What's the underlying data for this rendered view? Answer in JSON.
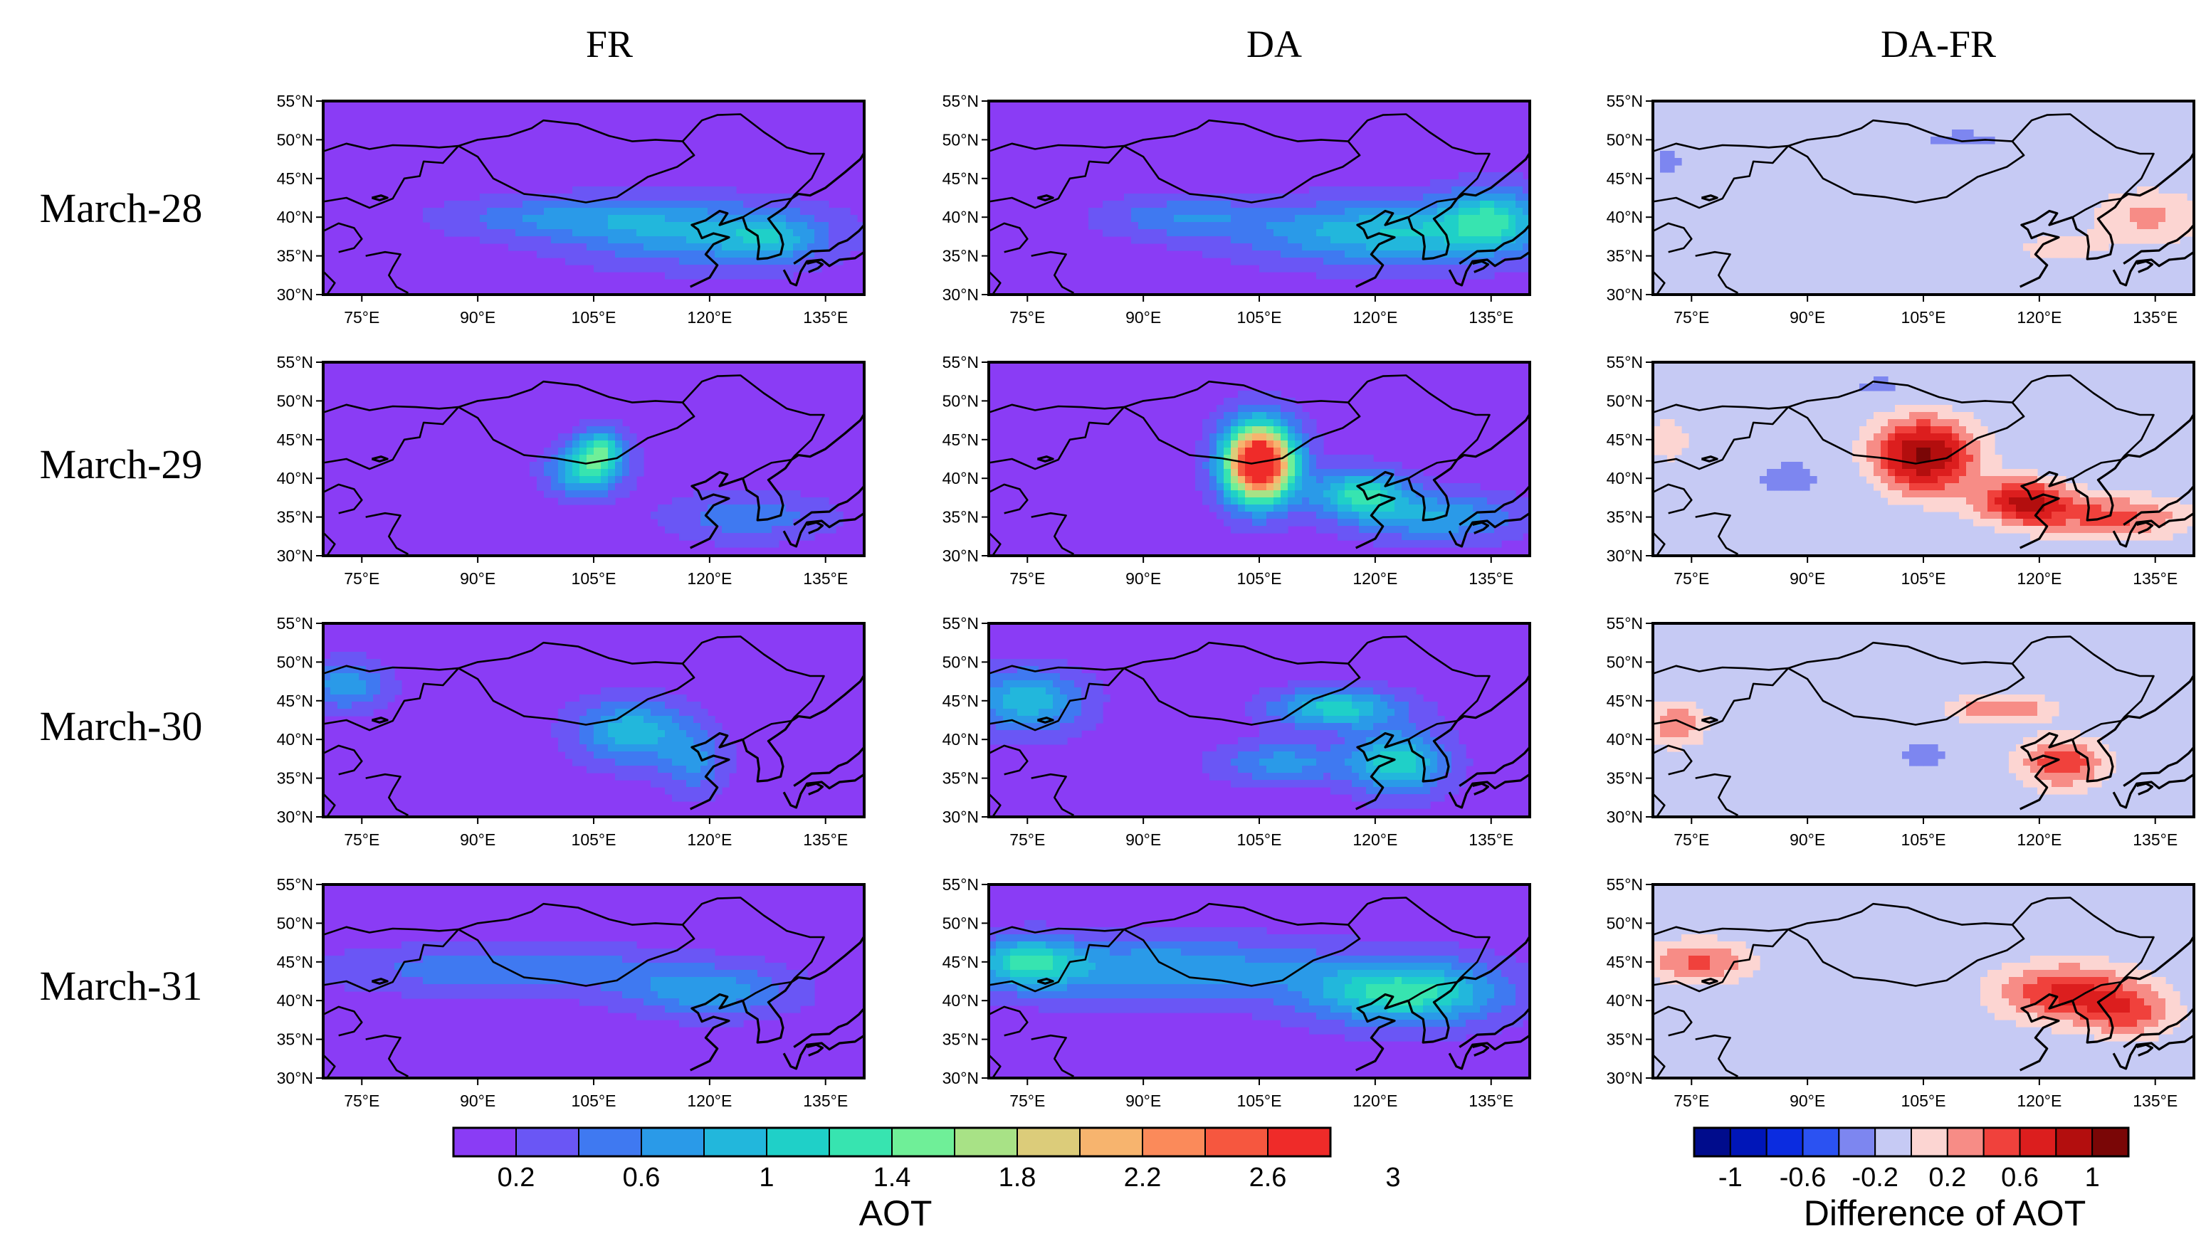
{
  "chart_data": {
    "type": "heatmap",
    "columns": [
      "FR",
      "DA",
      "DA-FR"
    ],
    "rows": [
      "March-28",
      "March-29",
      "March-30",
      "March-31"
    ],
    "lat_ticks": [
      "55°N",
      "50°N",
      "45°N",
      "40°N",
      "35°N",
      "30°N"
    ],
    "lon_ticks": [
      "75°E",
      "90°E",
      "105°E",
      "120°E",
      "135°E"
    ],
    "lat_range": [
      30,
      55
    ],
    "lon_range": [
      70,
      140
    ],
    "colorbars": [
      {
        "label": "AOT",
        "ticks": [
          "0.2",
          "0.6",
          "1",
          "1.4",
          "1.8",
          "2.2",
          "2.6",
          "3"
        ],
        "colors": [
          "#8a3cf5",
          "#6a56f5",
          "#3f79f1",
          "#2a9ae8",
          "#22b7dc",
          "#1fd0c8",
          "#37e4b0",
          "#6fef98",
          "#a8e286",
          "#dccc7a",
          "#f7b46e",
          "#fb8a5a",
          "#f6573f",
          "#ef2b29"
        ]
      },
      {
        "label": "Difference of AOT",
        "ticks": [
          "-1",
          "-0.6",
          "-0.2",
          "0.2",
          "0.6",
          "1"
        ],
        "colors": [
          "#000c8c",
          "#0016b8",
          "#0b2ce0",
          "#2b52f2",
          "#7d86f0",
          "#c6caf4",
          "#fcd5d2",
          "#f78c86",
          "#f0413c",
          "#dc1e1e",
          "#b30e0e",
          "#7a0606"
        ]
      }
    ],
    "panels": [
      {
        "row": "March-28",
        "column": "FR",
        "blobs": [
          {
            "lon": 118,
            "lat": 38,
            "aot": 0.8,
            "rlon": 16,
            "rlat": 4
          },
          {
            "lon": 100,
            "lat": 40,
            "aot": 0.55,
            "rlon": 14,
            "rlat": 2.5
          },
          {
            "lon": 128,
            "lat": 37,
            "aot": 0.6,
            "rlon": 6,
            "rlat": 3
          }
        ]
      },
      {
        "row": "March-28",
        "column": "DA",
        "blobs": [
          {
            "lon": 122,
            "lat": 38,
            "aot": 1.0,
            "rlon": 18,
            "rlat": 4
          },
          {
            "lon": 95,
            "lat": 40,
            "aot": 0.55,
            "rlon": 10,
            "rlat": 2.5
          },
          {
            "lon": 135,
            "lat": 40,
            "aot": 0.9,
            "rlon": 6,
            "rlat": 4
          }
        ]
      },
      {
        "row": "March-28",
        "column": "DA-FR",
        "blobs": [
          {
            "lon": 134,
            "lat": 40,
            "aot": 0.45,
            "rlon": 8,
            "rlat": 4
          },
          {
            "lon": 122,
            "lat": 36,
            "aot": 0.3,
            "rlon": 6,
            "rlat": 2
          },
          {
            "lon": 110,
            "lat": 50,
            "aot": -0.25,
            "rlon": 8,
            "rlat": 2
          },
          {
            "lon": 72,
            "lat": 47,
            "aot": -0.25,
            "rlon": 3,
            "rlat": 3
          }
        ]
      },
      {
        "row": "March-29",
        "column": "FR",
        "blobs": [
          {
            "lon": 104,
            "lat": 41,
            "aot": 1.2,
            "rlon": 4.5,
            "rlat": 3
          },
          {
            "lon": 106,
            "lat": 44,
            "aot": 1.05,
            "rlon": 3,
            "rlat": 2.5
          },
          {
            "lon": 125,
            "lat": 35,
            "aot": 0.55,
            "rlon": 10,
            "rlat": 3
          }
        ]
      },
      {
        "row": "March-29",
        "column": "DA",
        "blobs": [
          {
            "lon": 105,
            "lat": 42,
            "aot": 3.3,
            "rlon": 4.5,
            "rlat": 5
          },
          {
            "lon": 118,
            "lat": 38,
            "aot": 1.2,
            "rlon": 6,
            "rlat": 3
          },
          {
            "lon": 128,
            "lat": 35,
            "aot": 0.8,
            "rlon": 10,
            "rlat": 3
          }
        ]
      },
      {
        "row": "March-29",
        "column": "DA-FR",
        "blobs": [
          {
            "lon": 105,
            "lat": 43,
            "aot": 1.25,
            "rlon": 7,
            "rlat": 5
          },
          {
            "lon": 118,
            "lat": 37,
            "aot": 1.0,
            "rlon": 6,
            "rlat": 3
          },
          {
            "lon": 130,
            "lat": 35,
            "aot": 0.65,
            "rlon": 10,
            "rlat": 3
          },
          {
            "lon": 72,
            "lat": 45,
            "aot": 0.4,
            "rlon": 3,
            "rlat": 3
          },
          {
            "lon": 88,
            "lat": 40,
            "aot": -0.25,
            "rlon": 8,
            "rlat": 4
          },
          {
            "lon": 100,
            "lat": 52,
            "aot": -0.25,
            "rlon": 8,
            "rlat": 2
          }
        ]
      },
      {
        "row": "March-30",
        "column": "FR",
        "blobs": [
          {
            "lon": 110,
            "lat": 41,
            "aot": 0.95,
            "rlon": 7,
            "rlat": 4
          },
          {
            "lon": 73,
            "lat": 47,
            "aot": 0.75,
            "rlon": 5,
            "rlat": 3
          },
          {
            "lon": 118,
            "lat": 37,
            "aot": 0.6,
            "rlon": 4,
            "rlat": 4
          }
        ]
      },
      {
        "row": "March-30",
        "column": "DA",
        "blobs": [
          {
            "lon": 115,
            "lat": 44,
            "aot": 1.1,
            "rlon": 8,
            "rlat": 2.5
          },
          {
            "lon": 123,
            "lat": 37,
            "aot": 1.15,
            "rlon": 6,
            "rlat": 4
          },
          {
            "lon": 75,
            "lat": 45,
            "aot": 0.95,
            "rlon": 7,
            "rlat": 4
          },
          {
            "lon": 108,
            "lat": 37,
            "aot": 0.7,
            "rlon": 8,
            "rlat": 2.5
          }
        ]
      },
      {
        "row": "March-30",
        "column": "DA-FR",
        "blobs": [
          {
            "lon": 115,
            "lat": 44,
            "aot": 0.6,
            "rlon": 7,
            "rlat": 2
          },
          {
            "lon": 123,
            "lat": 37,
            "aot": 0.75,
            "rlon": 6,
            "rlat": 3.5
          },
          {
            "lon": 73,
            "lat": 42,
            "aot": 0.6,
            "rlon": 4,
            "rlat": 3
          },
          {
            "lon": 105,
            "lat": 38,
            "aot": -0.3,
            "rlon": 5,
            "rlat": 2
          }
        ]
      },
      {
        "row": "March-31",
        "column": "FR",
        "blobs": [
          {
            "lon": 95,
            "lat": 44,
            "aot": 0.6,
            "rlon": 22,
            "rlat": 3
          },
          {
            "lon": 120,
            "lat": 41,
            "aot": 0.75,
            "rlon": 10,
            "rlat": 3
          }
        ]
      },
      {
        "row": "March-31",
        "column": "DA",
        "blobs": [
          {
            "lon": 92,
            "lat": 44,
            "aot": 0.8,
            "rlon": 22,
            "rlat": 4
          },
          {
            "lon": 124,
            "lat": 41,
            "aot": 1.3,
            "rlon": 12,
            "rlat": 4
          },
          {
            "lon": 75,
            "lat": 45,
            "aot": 1.0,
            "rlon": 6,
            "rlat": 3
          }
        ]
      },
      {
        "row": "March-31",
        "column": "DA-FR",
        "blobs": [
          {
            "lon": 124,
            "lat": 41,
            "aot": 0.85,
            "rlon": 10,
            "rlat": 4
          },
          {
            "lon": 76,
            "lat": 45,
            "aot": 0.65,
            "rlon": 7,
            "rlat": 3
          },
          {
            "lon": 132,
            "lat": 38,
            "aot": 0.5,
            "rlon": 6,
            "rlat": 3
          },
          {
            "lon": 105,
            "lat": 40,
            "aot": -0.2,
            "rlon": 3,
            "rlat": 2
          }
        ]
      }
    ]
  }
}
